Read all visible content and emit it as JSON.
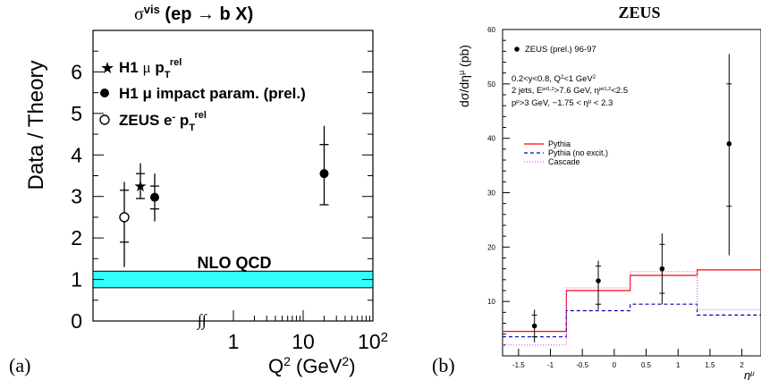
{
  "figure": {
    "panel_labels": [
      "(a)",
      "(b)"
    ]
  },
  "chart_data": [
    {
      "type": "scatter",
      "panel": "a",
      "title_main": "σ",
      "title_sup": "vis",
      "title_rest": " (ep → b X)",
      "ylabel": "Data / Theory",
      "xlabel_main": "Q",
      "xlabel_sup": "2",
      "xlabel_rest": " (GeV",
      "xlabel_sup2": "2",
      "xlabel_end": ")",
      "xscale": "log (axis break ∫∫ at low Q²)",
      "ylim": [
        0,
        7
      ],
      "yticks": [
        "0",
        "1",
        "2",
        "3",
        "4",
        "5",
        "6"
      ],
      "xticks": [
        {
          "label_base": "1",
          "exp": "",
          "value": 1
        },
        {
          "label_base": "10",
          "exp": "",
          "value": 10
        },
        {
          "label_base": "10",
          "exp": "2",
          "value": 100
        }
      ],
      "break_label": "∫∫",
      "band": {
        "label": "NLO QCD",
        "low": 0.8,
        "high": 1.2,
        "color": "#33ffff"
      },
      "legend": [
        {
          "marker": "star",
          "text": "H1 μ p",
          "sub": "T",
          "sup": "rel",
          "extra": ""
        },
        {
          "marker": "filled-circle",
          "text": "H1 μ p",
          "sub": "",
          "sup": "",
          "extra": "H1 μ impact param. (prel.)"
        },
        {
          "marker": "open-circle",
          "text": "ZEUS e",
          "sub": "T",
          "sup": "-",
          "extra": "rel"
        }
      ],
      "series": [
        {
          "name": "ZEUS e- pT rel",
          "marker": "open-circle",
          "points": [
            {
              "x": "below 1 GeV² (low-Q² region)",
              "y": 2.5,
              "stat": [
                1.9,
                3.15
              ],
              "tot": [
                1.3,
                3.35
              ]
            }
          ]
        },
        {
          "name": "H1 μ pT rel",
          "marker": "star",
          "points": [
            {
              "x": "low-Q² region",
              "y": 3.25,
              "stat": [
                2.95,
                3.55
              ],
              "tot": [
                2.95,
                3.8
              ]
            }
          ]
        },
        {
          "name": "H1 μ impact param. (prel.)",
          "marker": "filled-circle",
          "points": [
            {
              "x": "low-Q² region",
              "y": 2.98,
              "stat": [
                2.7,
                3.25
              ],
              "tot": [
                2.4,
                3.55
              ]
            },
            {
              "x": 20,
              "y": 3.55,
              "stat": [
                2.8,
                4.25
              ],
              "tot": [
                2.8,
                4.7
              ]
            }
          ]
        }
      ]
    },
    {
      "type": "scatter",
      "panel": "b",
      "title": "ZEUS",
      "ylabel": "dσ/dη",
      "ylabel_sup": "μ",
      "ylabel_unit": " (pb)",
      "xlabel": "η",
      "xlabel_sup": "μ",
      "xlim": [
        -1.75,
        2.3
      ],
      "ylim": [
        0,
        60
      ],
      "yticks": [
        0,
        10,
        20,
        30,
        40,
        50,
        60
      ],
      "xticks": [
        "-1.5",
        "-1",
        "-0.5",
        "0",
        "0.5",
        "1",
        "1.5",
        "2"
      ],
      "legend_data": "ZEUS (prel.) 96-97",
      "cuts": [
        "0.2<y<0.8, Q",
        "2 jets, E",
        "p",
        "-1.75 < η"
      ],
      "cut_lines": [
        {
          "parts": [
            "0.2<y<0.8, Q",
            "2",
            "<1 GeV",
            "2",
            ""
          ]
        },
        {
          "parts": [
            "2 jets, E",
            "jet1,2",
            ">7.6 GeV, η",
            "jet1,2",
            "<2.5"
          ]
        },
        {
          "parts": [
            "p",
            "μ",
            ">3 GeV, −1.75 < η",
            "μ",
            " < 2.3"
          ]
        }
      ],
      "points": [
        {
          "x": -1.25,
          "y": 5.5,
          "stat": [
            3.5,
            7.5
          ],
          "tot": [
            2.5,
            8.5
          ]
        },
        {
          "x": -0.25,
          "y": 13.8,
          "stat": [
            9.5,
            16.5
          ],
          "tot": [
            8.5,
            17.5
          ]
        },
        {
          "x": 0.75,
          "y": 16.0,
          "stat": [
            11.5,
            20.5
          ],
          "tot": [
            9.5,
            22.5
          ]
        },
        {
          "x": 1.8,
          "y": 39.0,
          "stat": [
            27.5,
            50.0
          ],
          "tot": [
            18.5,
            55.5
          ]
        }
      ],
      "bin_edges": [
        -1.75,
        -0.75,
        0.25,
        1.3,
        2.3
      ],
      "series": [
        {
          "name": "Pythia",
          "color": "#ff0000",
          "dash": "",
          "values": [
            4.5,
            12.0,
            14.8,
            15.8
          ]
        },
        {
          "name": "Pythia (no excit.)",
          "color": "#0000aa",
          "dash": "4,3",
          "values": [
            3.5,
            8.3,
            9.5,
            7.5
          ]
        },
        {
          "name": "Cascade",
          "color": "#dd55ff",
          "dash": "1,2",
          "values": [
            2.0,
            12.5,
            15.5,
            8.5
          ]
        }
      ]
    }
  ]
}
